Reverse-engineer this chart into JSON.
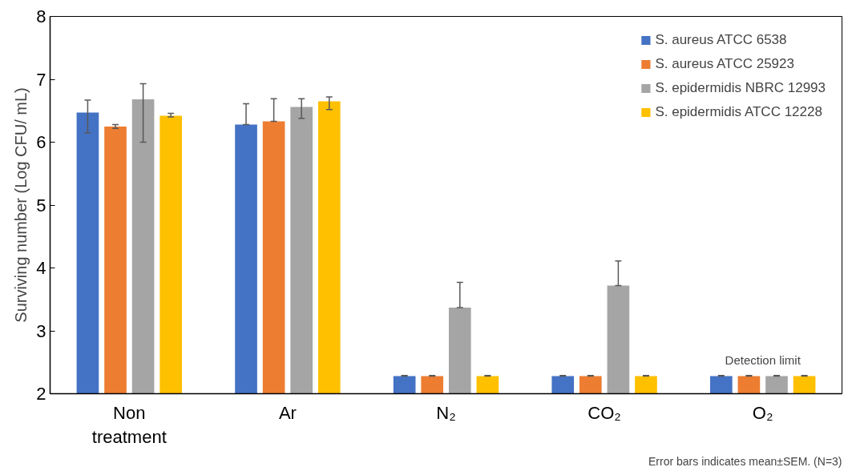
{
  "chart_data": {
    "type": "bar",
    "categories": [
      "Non\ntreatment",
      "Ar",
      "N₂",
      "CO₂",
      "O₂"
    ],
    "ylabel": "Surviving number (Log CFU/ mL)",
    "ylim": [
      2,
      8
    ],
    "yticks": [
      2,
      3,
      4,
      5,
      6,
      7,
      8
    ],
    "grid": false,
    "legend": "top right",
    "series": [
      {
        "name": "S. aureus ATCC 6538",
        "color": "#4472c4",
        "values": [
          6.47,
          6.28,
          2.28,
          2.28,
          2.28
        ],
        "errors": [
          [
            6.15,
            6.67
          ],
          [
            6.28,
            6.61
          ],
          [
            2.28,
            2.29
          ],
          [
            2.28,
            2.29
          ],
          [
            2.28,
            2.29
          ]
        ]
      },
      {
        "name": "S. aureus ATCC 25923",
        "color": "#ed7d31",
        "values": [
          6.25,
          6.33,
          2.28,
          2.28,
          2.28
        ],
        "errors": [
          [
            6.22,
            6.28
          ],
          [
            6.33,
            6.69
          ],
          [
            2.28,
            2.29
          ],
          [
            2.28,
            2.29
          ],
          [
            2.28,
            2.29
          ]
        ]
      },
      {
        "name": "S. epidermidis NBRC 12993",
        "color": "#a5a5a5",
        "values": [
          6.68,
          6.56,
          3.37,
          3.72,
          2.28
        ],
        "errors": [
          [
            6.0,
            6.93
          ],
          [
            6.38,
            6.69
          ],
          [
            3.37,
            3.77
          ],
          [
            3.72,
            4.11
          ],
          [
            2.28,
            2.29
          ]
        ]
      },
      {
        "name": "S. epidermidis ATCC 12228",
        "color": "#ffc000",
        "values": [
          6.42,
          6.65,
          2.28,
          2.28,
          2.28
        ],
        "errors": [
          [
            6.4,
            6.46
          ],
          [
            6.52,
            6.72
          ],
          [
            2.28,
            2.29
          ],
          [
            2.28,
            2.29
          ],
          [
            2.28,
            2.29
          ]
        ]
      }
    ],
    "annotations": [
      "Detection limit",
      "Error bars indicates mean±SEM. (N=3)"
    ]
  }
}
